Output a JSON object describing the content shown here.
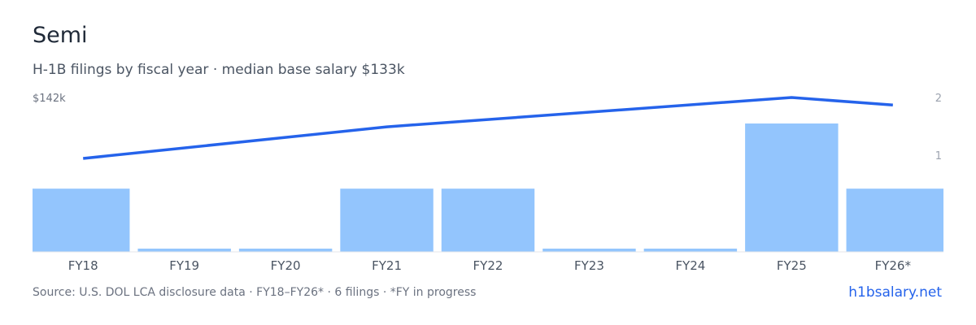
{
  "title": "Semi",
  "subtitle": "H-1B filings by fiscal year · median base salary $133k",
  "footer": {
    "source": "Source: U.S. DOL LCA disclosure data · FY18–FY26* · 6 filings · *FY in progress",
    "brand": "h1bsalary.net"
  },
  "colors": {
    "bar": "#93c5fd",
    "line": "#2563eb",
    "axis": "#e5e7eb"
  },
  "chart_data": {
    "type": "bar+line",
    "categories": [
      "FY18",
      "FY19",
      "FY20",
      "FY21",
      "FY22",
      "FY23",
      "FY24",
      "FY25",
      "FY26*"
    ],
    "series": [
      {
        "values": [
          1,
          0,
          0,
          1,
          1,
          0,
          0,
          2,
          1
        ],
        "axis": "right",
        "kind": "bar"
      },
      {
        "values": [
          null,
          null,
          null,
          null,
          null,
          null,
          null,
          null,
          null
        ],
        "axis": "left",
        "kind": "line",
        "points": [
          [
            0,
            120.2
          ],
          [
            3,
            131.5
          ],
          [
            7,
            142.0
          ],
          [
            8,
            139.3
          ]
        ]
      }
    ],
    "left_axis": {
      "tick_label": "$142k",
      "tick_value": 142,
      "unit": "$k"
    },
    "right_axis": {
      "ticks": [
        "2",
        "1"
      ],
      "ylim": [
        0,
        2
      ]
    },
    "grid": false
  }
}
